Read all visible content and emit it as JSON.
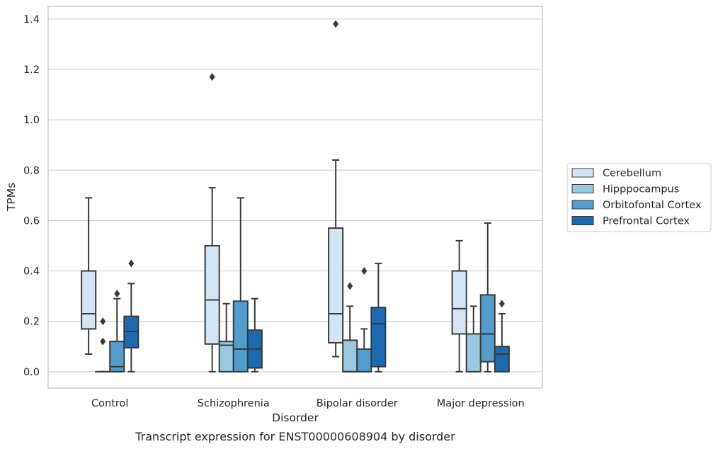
{
  "caption": "Transcript expression for ENST00000608904 by disorder",
  "chart_data": {
    "type": "box",
    "xlabel": "Disorder",
    "ylabel": "TPMs",
    "ylim": [
      -0.065,
      1.45
    ],
    "yticks": [
      "0.0",
      "0.2",
      "0.4",
      "0.6",
      "0.8",
      "1.0",
      "1.2",
      "1.4"
    ],
    "grid": "horizontal",
    "legend_position": "right",
    "categories": [
      "Control",
      "Schizophrenia",
      "Bipolar disorder",
      "Major depression"
    ],
    "series": [
      {
        "name": "Cerebellum",
        "color": "#d3e4f3",
        "boxes": [
          {
            "whislo": 0.07,
            "q1": 0.17,
            "med": 0.23,
            "q3": 0.4,
            "whishi": 0.69,
            "fliers": []
          },
          {
            "whislo": 0.0,
            "q1": 0.11,
            "med": 0.285,
            "q3": 0.5,
            "whishi": 0.73,
            "fliers": [
              1.17
            ]
          },
          {
            "whislo": 0.06,
            "q1": 0.115,
            "med": 0.23,
            "q3": 0.57,
            "whishi": 0.84,
            "fliers": [
              1.38
            ]
          },
          {
            "whislo": 0.0,
            "q1": 0.15,
            "med": 0.25,
            "q3": 0.4,
            "whishi": 0.52,
            "fliers": []
          }
        ]
      },
      {
        "name": "Hipppocampus",
        "color": "#9ac8e0",
        "boxes": [
          {
            "whislo": 0.0,
            "q1": 0.0,
            "med": 0.0,
            "q3": 0.0,
            "whishi": 0.0,
            "fliers": [
              0.12,
              0.2
            ]
          },
          {
            "whislo": 0.0,
            "q1": 0.0,
            "med": 0.105,
            "q3": 0.12,
            "whishi": 0.27,
            "fliers": []
          },
          {
            "whislo": 0.0,
            "q1": 0.0,
            "med": 0.0,
            "q3": 0.125,
            "whishi": 0.26,
            "fliers": [
              0.34
            ]
          },
          {
            "whislo": 0.0,
            "q1": 0.0,
            "med": 0.15,
            "q3": 0.15,
            "whishi": 0.26,
            "fliers": []
          }
        ]
      },
      {
        "name": "Orbitofontal Cortex",
        "color": "#529dcc",
        "boxes": [
          {
            "whislo": 0.0,
            "q1": 0.0,
            "med": 0.02,
            "q3": 0.12,
            "whishi": 0.29,
            "fliers": [
              0.31
            ]
          },
          {
            "whislo": 0.0,
            "q1": 0.0,
            "med": 0.09,
            "q3": 0.28,
            "whishi": 0.69,
            "fliers": []
          },
          {
            "whislo": 0.0,
            "q1": 0.0,
            "med": 0.0,
            "q3": 0.09,
            "whishi": 0.17,
            "fliers": [
              0.4
            ]
          },
          {
            "whislo": 0.0,
            "q1": 0.04,
            "med": 0.15,
            "q3": 0.305,
            "whishi": 0.59,
            "fliers": []
          }
        ]
      },
      {
        "name": "Prefrontal Cortex",
        "color": "#1c6aaf",
        "boxes": [
          {
            "whislo": 0.0,
            "q1": 0.095,
            "med": 0.16,
            "q3": 0.22,
            "whishi": 0.35,
            "fliers": [
              0.43
            ]
          },
          {
            "whislo": 0.0,
            "q1": 0.015,
            "med": 0.09,
            "q3": 0.165,
            "whishi": 0.29,
            "fliers": []
          },
          {
            "whislo": 0.0,
            "q1": 0.02,
            "med": 0.19,
            "q3": 0.255,
            "whishi": 0.43,
            "fliers": []
          },
          {
            "whislo": 0.0,
            "q1": 0.0,
            "med": 0.07,
            "q3": 0.1,
            "whishi": 0.23,
            "fliers": [
              0.27
            ]
          }
        ]
      }
    ]
  }
}
